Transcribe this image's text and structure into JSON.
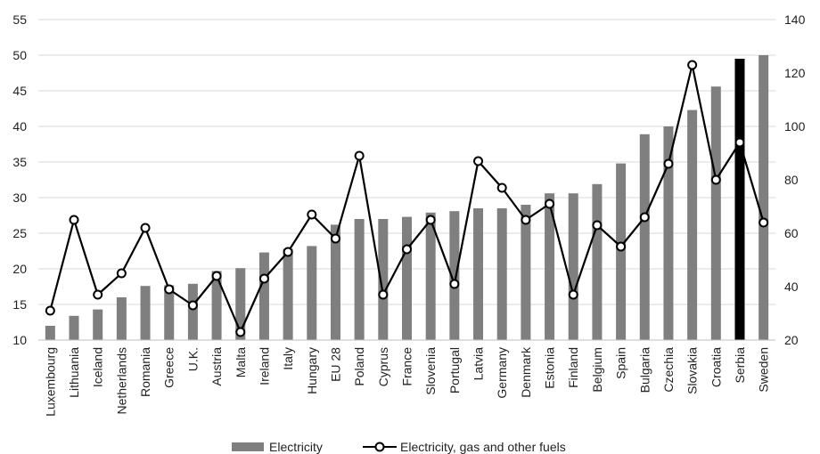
{
  "chart_data": {
    "type": "bar",
    "categories": [
      "Luxembourg",
      "Lithuania",
      "Iceland",
      "Netherlands",
      "Romania",
      "Greece",
      "U.K.",
      "Austria",
      "Malta",
      "Ireland",
      "Italy",
      "Hungary",
      "EU 28",
      "Poland",
      "Cyprus",
      "France",
      "Slovenia",
      "Portugal",
      "Latvia",
      "Germany",
      "Denmark",
      "Estonia",
      "Finland",
      "Belgium",
      "Spain",
      "Bulgaria",
      "Czechia",
      "Slovakia",
      "Croatia",
      "Serbia",
      "Sweden"
    ],
    "series": [
      {
        "name": "Electricity",
        "type": "bar",
        "axis": "left",
        "color": "#7f7f7f",
        "highlight": {
          "category": "Serbia",
          "color": "#000000"
        },
        "values": [
          12,
          13.4,
          14.3,
          16,
          17.6,
          17.7,
          17.9,
          19.7,
          20.1,
          22.3,
          22.8,
          23.2,
          26.2,
          27,
          27,
          27.3,
          27.9,
          28.1,
          28.5,
          28.5,
          29,
          30.6,
          30.6,
          31.9,
          34.8,
          38.9,
          40,
          42.3,
          45.6,
          49.5,
          50
        ]
      },
      {
        "name": "Electricity, gas and other fuels",
        "type": "line",
        "axis": "right",
        "color": "#000000",
        "marker": "hollow-circle",
        "values": [
          31,
          65,
          37,
          45,
          62,
          39,
          33,
          44,
          23,
          43,
          53,
          67,
          58,
          89,
          37,
          54,
          65,
          41,
          87,
          77,
          65,
          71,
          37,
          63,
          55,
          66,
          86,
          123,
          80,
          94,
          64
        ]
      }
    ],
    "y_left": {
      "min": 10,
      "max": 55,
      "ticks": [
        10,
        15,
        20,
        25,
        30,
        35,
        40,
        45,
        50,
        55
      ]
    },
    "y_right": {
      "min": 20,
      "max": 140,
      "ticks": [
        20,
        40,
        60,
        80,
        100,
        120,
        140
      ]
    },
    "grid": true,
    "legend": "bottom-center"
  }
}
